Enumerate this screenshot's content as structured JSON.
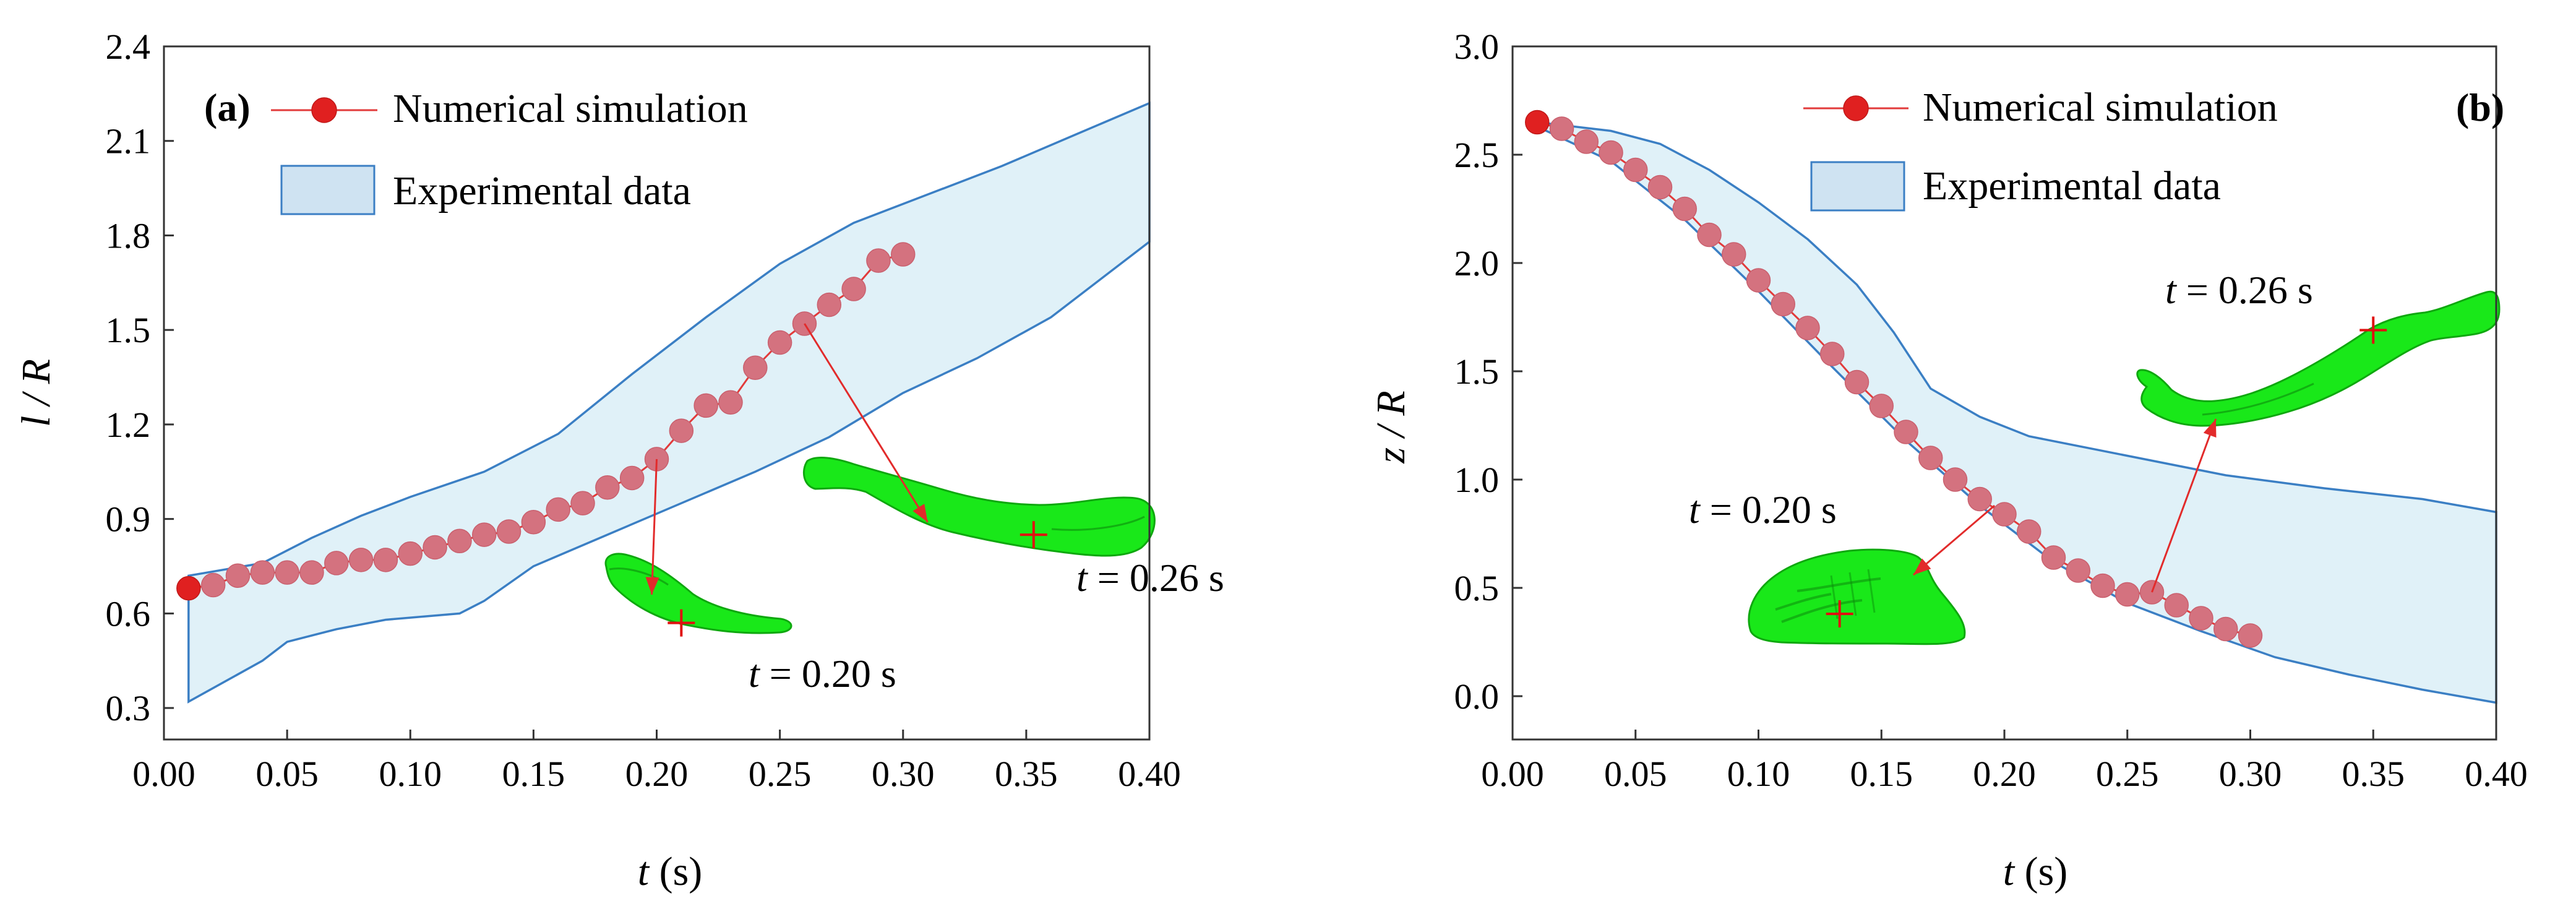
{
  "chart_data": [
    {
      "type": "line",
      "panel": "(a)",
      "xlabel_var": "t",
      "xlabel_unit": " (s)",
      "ylabel": "l / R",
      "xlim": [
        0.0,
        0.4
      ],
      "ylim": [
        0.2,
        2.4
      ],
      "x_ticks": [
        0.0,
        0.05,
        0.1,
        0.15,
        0.2,
        0.25,
        0.3,
        0.35,
        0.4
      ],
      "x_tick_labels": [
        "0.00",
        "0.05",
        "0.10",
        "0.15",
        "0.20",
        "0.25",
        "0.30",
        "0.35",
        "0.40"
      ],
      "y_ticks": [
        0.3,
        0.6,
        0.9,
        1.2,
        1.5,
        1.8,
        2.1,
        2.4
      ],
      "y_tick_labels": [
        "0.3",
        "0.6",
        "0.9",
        "1.2",
        "1.5",
        "1.8",
        "2.1",
        "2.4"
      ],
      "legend": {
        "simulation": "Numerical simulation",
        "experiment": "Experimental data",
        "placement": "top-left"
      },
      "series": [
        {
          "name": "Numerical simulation",
          "x": [
            0.01,
            0.02,
            0.03,
            0.04,
            0.05,
            0.06,
            0.07,
            0.08,
            0.09,
            0.1,
            0.11,
            0.12,
            0.13,
            0.14,
            0.15,
            0.16,
            0.17,
            0.18,
            0.19,
            0.2,
            0.21,
            0.22,
            0.23,
            0.24,
            0.25,
            0.26,
            0.27,
            0.28,
            0.29,
            0.3
          ],
          "y": [
            0.68,
            0.69,
            0.72,
            0.73,
            0.73,
            0.73,
            0.76,
            0.77,
            0.77,
            0.79,
            0.81,
            0.83,
            0.85,
            0.86,
            0.89,
            0.93,
            0.95,
            1.0,
            1.03,
            1.09,
            1.18,
            1.26,
            1.27,
            1.38,
            1.46,
            1.52,
            1.58,
            1.63,
            1.72,
            1.74
          ]
        }
      ],
      "band": {
        "name": "Experimental data",
        "upper": {
          "x": [
            0.01,
            0.04,
            0.06,
            0.08,
            0.1,
            0.13,
            0.16,
            0.19,
            0.22,
            0.25,
            0.28,
            0.31,
            0.34,
            0.37,
            0.4
          ],
          "y": [
            0.72,
            0.76,
            0.84,
            0.91,
            0.97,
            1.05,
            1.17,
            1.36,
            1.54,
            1.71,
            1.84,
            1.93,
            2.02,
            2.12,
            2.22
          ]
        },
        "lower": {
          "x": [
            0.01,
            0.04,
            0.05,
            0.07,
            0.09,
            0.12,
            0.13,
            0.15,
            0.18,
            0.21,
            0.24,
            0.27,
            0.3,
            0.33,
            0.36,
            0.4
          ],
          "y": [
            0.32,
            0.45,
            0.51,
            0.55,
            0.58,
            0.6,
            0.64,
            0.75,
            0.85,
            0.95,
            1.05,
            1.16,
            1.3,
            1.41,
            1.54,
            1.78
          ]
        }
      },
      "snapshots": [
        {
          "label": "t = 0.20 s",
          "label_var": "t",
          "label_rest": " = 0.20 s",
          "from": [
            0.2,
            1.09
          ],
          "to": [
            0.198,
            0.66
          ],
          "blob_center": [
            0.21,
            0.57
          ],
          "cross": [
            0.21,
            0.57
          ]
        },
        {
          "label": "t = 0.26 s",
          "label_var": "t",
          "label_rest": " = 0.26 s",
          "from": [
            0.26,
            1.52
          ],
          "to": [
            0.31,
            0.89
          ],
          "blob_center": [
            0.33,
            0.84
          ],
          "cross": [
            0.353,
            0.85
          ]
        }
      ]
    },
    {
      "type": "line",
      "panel": "(b)",
      "xlabel_var": "t",
      "xlabel_unit": " (s)",
      "ylabel": "z / R",
      "xlim": [
        0.0,
        0.4
      ],
      "ylim": [
        -0.2,
        3.0
      ],
      "x_ticks": [
        0.0,
        0.05,
        0.1,
        0.15,
        0.2,
        0.25,
        0.3,
        0.35,
        0.4
      ],
      "x_tick_labels": [
        "0.00",
        "0.05",
        "0.10",
        "0.15",
        "0.20",
        "0.25",
        "0.30",
        "0.35",
        "0.40"
      ],
      "y_ticks": [
        0.0,
        0.5,
        1.0,
        1.5,
        2.0,
        2.5,
        3.0
      ],
      "y_tick_labels": [
        "0.0",
        "0.5",
        "1.0",
        "1.5",
        "2.0",
        "2.5",
        "3.0"
      ],
      "legend": {
        "simulation": "Numerical simulation",
        "experiment": "Experimental data",
        "placement": "top-center"
      },
      "series": [
        {
          "name": "Numerical simulation",
          "x": [
            0.01,
            0.02,
            0.03,
            0.04,
            0.05,
            0.06,
            0.07,
            0.08,
            0.09,
            0.1,
            0.11,
            0.12,
            0.13,
            0.14,
            0.15,
            0.16,
            0.17,
            0.18,
            0.19,
            0.2,
            0.21,
            0.22,
            0.23,
            0.24,
            0.25,
            0.26,
            0.27,
            0.28,
            0.29,
            0.3
          ],
          "y": [
            2.65,
            2.62,
            2.56,
            2.51,
            2.43,
            2.35,
            2.25,
            2.13,
            2.04,
            1.92,
            1.81,
            1.7,
            1.58,
            1.45,
            1.34,
            1.22,
            1.1,
            1.0,
            0.91,
            0.84,
            0.76,
            0.64,
            0.58,
            0.51,
            0.47,
            0.48,
            0.42,
            0.36,
            0.31,
            0.28
          ]
        }
      ],
      "band": {
        "name": "Experimental data",
        "upper": {
          "x": [
            0.01,
            0.04,
            0.06,
            0.08,
            0.1,
            0.12,
            0.14,
            0.155,
            0.17,
            0.19,
            0.21,
            0.25,
            0.29,
            0.33,
            0.37,
            0.4
          ],
          "y": [
            2.65,
            2.61,
            2.55,
            2.43,
            2.28,
            2.11,
            1.9,
            1.68,
            1.42,
            1.29,
            1.2,
            1.11,
            1.02,
            0.96,
            0.91,
            0.85
          ]
        },
        "lower": {
          "x": [
            0.01,
            0.04,
            0.07,
            0.1,
            0.13,
            0.16,
            0.19,
            0.22,
            0.25,
            0.28,
            0.31,
            0.34,
            0.37,
            0.4
          ],
          "y": [
            2.63,
            2.47,
            2.2,
            1.87,
            1.52,
            1.18,
            0.88,
            0.62,
            0.43,
            0.3,
            0.18,
            0.1,
            0.03,
            -0.03
          ]
        }
      },
      "snapshots": [
        {
          "label": "t = 0.20 s",
          "label_var": "t",
          "label_rest": " = 0.20 s",
          "from": [
            0.196,
            0.88
          ],
          "to": [
            0.163,
            0.56
          ],
          "blob_center": [
            0.138,
            0.4
          ],
          "cross": [
            0.133,
            0.38
          ]
        },
        {
          "label": "t = 0.26 s",
          "label_var": "t",
          "label_rest": " = 0.26 s",
          "from": [
            0.26,
            0.48
          ],
          "to": [
            0.286,
            1.28
          ],
          "blob_center": [
            0.35,
            1.55
          ],
          "cross": [
            0.35,
            1.69
          ]
        }
      ]
    }
  ]
}
